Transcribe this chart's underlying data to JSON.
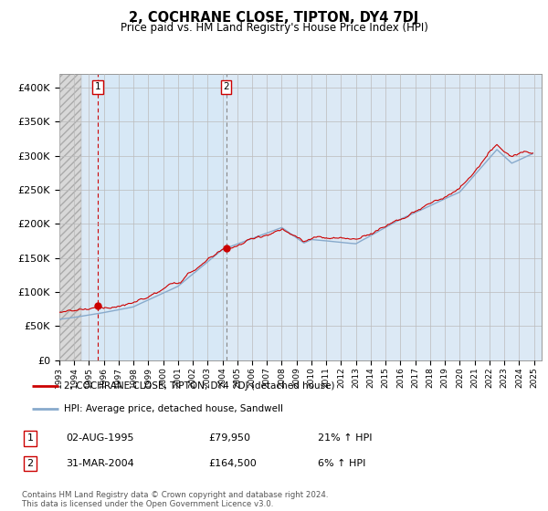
{
  "title": "2, COCHRANE CLOSE, TIPTON, DY4 7DJ",
  "subtitle": "Price paid vs. HM Land Registry's House Price Index (HPI)",
  "legend_line1": "2, COCHRANE CLOSE, TIPTON, DY4 7DJ (detached house)",
  "legend_line2": "HPI: Average price, detached house, Sandwell",
  "transaction1_date": "02-AUG-1995",
  "transaction1_price": "£79,950",
  "transaction1_hpi": "21% ↑ HPI",
  "transaction2_date": "31-MAR-2004",
  "transaction2_price": "£164,500",
  "transaction2_hpi": "6% ↑ HPI",
  "footer": "Contains HM Land Registry data © Crown copyright and database right 2024.\nThis data is licensed under the Open Government Licence v3.0.",
  "bg_color": "#dce9f5",
  "hatch_bg_color": "#d0d0d0",
  "band_color": "#c8ddf0",
  "red_line_color": "#cc0000",
  "blue_line_color": "#88aacc",
  "dot_color": "#cc0000",
  "vline1_color": "#cc0000",
  "vline2_color": "#888888",
  "box_color": "#cc0000",
  "grid_color": "#bbbbbb",
  "ylim_min": 0,
  "ylim_max": 420000,
  "yticks": [
    0,
    50000,
    100000,
    150000,
    200000,
    250000,
    300000,
    350000,
    400000
  ],
  "ytick_labels": [
    "£0",
    "£50K",
    "£100K",
    "£150K",
    "£200K",
    "£250K",
    "£300K",
    "£350K",
    "£400K"
  ],
  "xmin": 1993.0,
  "xmax": 2025.5,
  "hatch_end": 1994.5,
  "transaction1_x": 1995.58,
  "transaction1_y": 79950,
  "transaction2_x": 2004.25,
  "transaction2_y": 164500
}
